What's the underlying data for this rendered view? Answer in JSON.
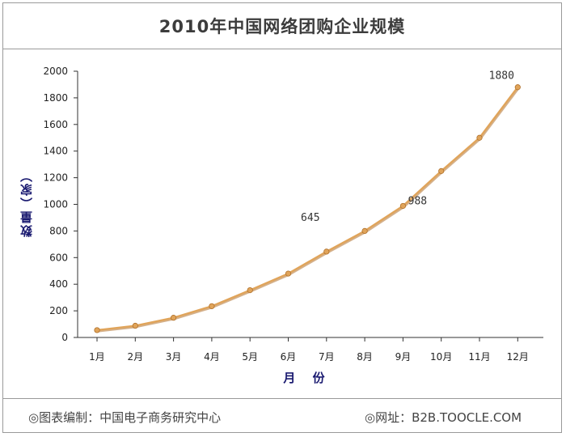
{
  "title": "2010年中国网络团购企业规模",
  "footer": {
    "source": "◎图表编制：中国电子商务研究中心",
    "website": "◎网址：B2B.TOOCLE.COM"
  },
  "chart_data": {
    "type": "line",
    "title": "2010年中国网络团购企业规模",
    "xlabel": "月 份",
    "ylabel": "数量（家）",
    "categories": [
      "1月",
      "2月",
      "3月",
      "4月",
      "5月",
      "6月",
      "7月",
      "8月",
      "9月",
      "10月",
      "11月",
      "12月"
    ],
    "values": [
      55,
      88,
      148,
      235,
      355,
      480,
      645,
      800,
      988,
      1250,
      1500,
      1880
    ],
    "ylim": [
      0,
      2000
    ],
    "yticks": [
      0,
      200,
      400,
      600,
      800,
      1000,
      1200,
      1400,
      1600,
      1800,
      2000
    ],
    "data_labels": [
      {
        "index": 6,
        "text": "645"
      },
      {
        "index": 8,
        "text": "988"
      },
      {
        "index": 11,
        "text": "1880"
      }
    ],
    "grid": false,
    "legend": "none",
    "line_color": "#e0a45a",
    "line_shadow_color": "#b0702a"
  }
}
